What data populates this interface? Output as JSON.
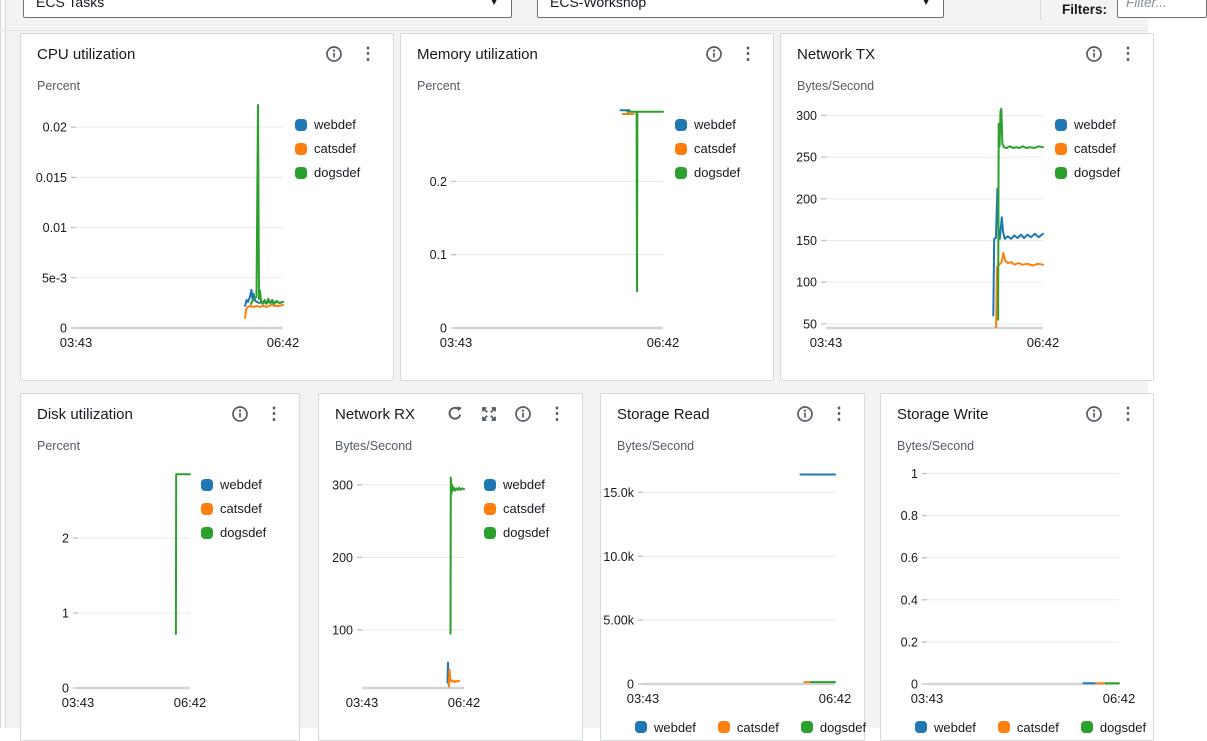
{
  "topbar": {
    "metric_selector": "ECS Tasks",
    "dashboard_selector": "ECS-Workshop",
    "filters_label": "Filters:",
    "filter_placeholder": "Filter..."
  },
  "icons": {
    "caret": "▼",
    "kebab": "⋮"
  },
  "palette": {
    "webdef": "#1f77b4",
    "catsdef": "#ff7f0e",
    "dogsdef": "#2ca02c"
  },
  "chart_data": [
    {
      "key": "cpu",
      "type": "line",
      "title": "CPU utilization",
      "ylabel": "Percent",
      "ylim": [
        0,
        0.0224
      ],
      "ml": 45,
      "mr": 12,
      "legend_position": "right",
      "grid": true,
      "yticks": [
        {
          "v": 0,
          "label": "0"
        },
        {
          "v": 0.005,
          "label": "5e-3"
        },
        {
          "v": 0.01,
          "label": "0.01"
        },
        {
          "v": 0.015,
          "label": "0.015"
        },
        {
          "v": 0.02,
          "label": "0.02"
        }
      ],
      "xticks": [
        {
          "f": 0,
          "label": "03:43"
        },
        {
          "f": 1,
          "label": "06:42"
        }
      ],
      "series": [
        {
          "name": "webdef",
          "points": [
            [
              0.817,
              0.0022
            ],
            [
              0.824,
              0.0028
            ],
            [
              0.831,
              0.0026
            ],
            [
              0.84,
              0.0031
            ],
            [
              0.848,
              0.0038
            ],
            [
              0.853,
              0.0028
            ],
            [
              0.858,
              0.0034
            ],
            [
              0.865,
              0.0027
            ],
            [
              0.874,
              0.0026
            ],
            [
              0.886,
              0.0025
            ],
            [
              0.9,
              0.0026
            ],
            [
              0.917,
              0.0025
            ],
            [
              0.934,
              0.0026
            ],
            [
              0.952,
              0.0025
            ],
            [
              0.97,
              0.0026
            ],
            [
              0.986,
              0.0025
            ],
            [
              1,
              0.0026
            ]
          ]
        },
        {
          "name": "catsdef",
          "points": [
            [
              0.817,
              0.001
            ],
            [
              0.822,
              0.0019
            ],
            [
              0.831,
              0.0021
            ],
            [
              0.843,
              0.0022
            ],
            [
              0.857,
              0.0021
            ],
            [
              0.872,
              0.0022
            ],
            [
              0.888,
              0.0021
            ],
            [
              0.904,
              0.0022
            ],
            [
              0.922,
              0.0021
            ],
            [
              0.942,
              0.0023
            ],
            [
              0.962,
              0.0022
            ],
            [
              0.98,
              0.0022
            ],
            [
              1,
              0.0023
            ]
          ]
        },
        {
          "name": "dogsdef",
          "points": [
            [
              0.845,
              0.0024
            ],
            [
              0.858,
              0.0029
            ],
            [
              0.872,
              0.0031
            ],
            [
              0.879,
              0.0222
            ],
            [
              0.884,
              0.0029
            ],
            [
              0.889,
              0.0037
            ],
            [
              0.894,
              0.0026
            ],
            [
              0.902,
              0.0024
            ],
            [
              0.911,
              0.0028
            ],
            [
              0.92,
              0.0024
            ],
            [
              0.929,
              0.0029
            ],
            [
              0.938,
              0.0025
            ],
            [
              0.948,
              0.0028
            ],
            [
              0.958,
              0.0024
            ],
            [
              0.968,
              0.0027
            ],
            [
              0.98,
              0.0025
            ],
            [
              1,
              0.0026
            ]
          ]
        }
      ]
    },
    {
      "key": "memory",
      "type": "line",
      "title": "Memory utilization",
      "ylabel": "Percent",
      "ylim": [
        0,
        0.307
      ],
      "ml": 45,
      "mr": 12,
      "legend_position": "right",
      "grid": true,
      "yticks": [
        {
          "v": 0,
          "label": "0"
        },
        {
          "v": 0.1,
          "label": "0.1"
        },
        {
          "v": 0.2,
          "label": "0.2"
        }
      ],
      "xticks": [
        {
          "f": 0,
          "label": "03:43"
        },
        {
          "f": 1,
          "label": "06:42"
        }
      ],
      "series": [
        {
          "name": "webdef",
          "points": [
            [
              0.795,
              0.297
            ],
            [
              0.838,
              0.297
            ]
          ]
        },
        {
          "name": "catsdef",
          "points": [
            [
              0.806,
              0.292
            ],
            [
              0.858,
              0.292
            ]
          ]
        },
        {
          "name": "dogsdef",
          "points": [
            [
              0.828,
              0.295
            ],
            [
              0.8725,
              0.295
            ],
            [
              0.8745,
              0.05
            ],
            [
              0.8765,
              0.295
            ],
            [
              1,
              0.295
            ]
          ]
        }
      ]
    },
    {
      "key": "network-tx",
      "type": "line",
      "title": "Network TX",
      "ylabel": "Bytes/Second",
      "ylim": [
        45,
        315
      ],
      "ml": 35,
      "mr": 12,
      "legend_position": "right",
      "grid": true,
      "yticks": [
        {
          "v": 50,
          "label": "50"
        },
        {
          "v": 100,
          "label": "100"
        },
        {
          "v": 150,
          "label": "150"
        },
        {
          "v": 200,
          "label": "200"
        },
        {
          "v": 250,
          "label": "250"
        },
        {
          "v": 300,
          "label": "300"
        }
      ],
      "xticks": [
        {
          "f": 0,
          "label": "03:43"
        },
        {
          "f": 1,
          "label": "06:42"
        }
      ],
      "series": [
        {
          "name": "webdef",
          "points": [
            [
              0.771,
              60
            ],
            [
              0.775,
              152
            ],
            [
              0.783,
              153
            ],
            [
              0.79,
              212
            ],
            [
              0.796,
              158
            ],
            [
              0.801,
              152
            ],
            [
              0.81,
              178
            ],
            [
              0.816,
              160
            ],
            [
              0.824,
              152
            ],
            [
              0.838,
              155
            ],
            [
              0.853,
              152
            ],
            [
              0.868,
              156
            ],
            [
              0.883,
              153
            ],
            [
              0.898,
              157
            ],
            [
              0.913,
              153
            ],
            [
              0.929,
              157
            ],
            [
              0.945,
              154
            ],
            [
              0.962,
              158
            ],
            [
              0.98,
              154
            ],
            [
              1,
              158
            ]
          ]
        },
        {
          "name": "catsdef",
          "points": [
            [
              0.784,
              46
            ],
            [
              0.788,
              118
            ],
            [
              0.798,
              121
            ],
            [
              0.809,
              124
            ],
            [
              0.817,
              135
            ],
            [
              0.826,
              126
            ],
            [
              0.838,
              123
            ],
            [
              0.853,
              124
            ],
            [
              0.869,
              121
            ],
            [
              0.886,
              123
            ],
            [
              0.905,
              121
            ],
            [
              0.928,
              122
            ],
            [
              0.952,
              120
            ],
            [
              0.976,
              122
            ],
            [
              1,
              121
            ]
          ]
        },
        {
          "name": "dogsdef",
          "points": [
            [
              0.793,
              55
            ],
            [
              0.796,
              290
            ],
            [
              0.8,
              263
            ],
            [
              0.804,
              305
            ],
            [
              0.808,
              308
            ],
            [
              0.813,
              266
            ],
            [
              0.82,
              262
            ],
            [
              0.833,
              261
            ],
            [
              0.847,
              263
            ],
            [
              0.862,
              261
            ],
            [
              0.877,
              262
            ],
            [
              0.892,
              261
            ],
            [
              0.907,
              263
            ],
            [
              0.923,
              261
            ],
            [
              0.941,
              262
            ],
            [
              0.96,
              261
            ],
            [
              0.98,
              263
            ],
            [
              1,
              262
            ]
          ]
        }
      ]
    },
    {
      "key": "disk",
      "type": "line",
      "title": "Disk utilization",
      "ylabel": "Percent",
      "ylim": [
        0,
        3.0
      ],
      "ml": 47,
      "mr": 11,
      "legend_position": "right",
      "grid": true,
      "yticks": [
        {
          "v": 0,
          "label": "0"
        },
        {
          "v": 1,
          "label": "1"
        },
        {
          "v": 2,
          "label": "2"
        }
      ],
      "xticks": [
        {
          "f": 0,
          "label": "03:43"
        },
        {
          "f": 1,
          "label": "06:42"
        }
      ],
      "series": [
        {
          "name": "webdef",
          "points": []
        },
        {
          "name": "catsdef",
          "points": []
        },
        {
          "name": "dogsdef",
          "points": [
            [
              0.874,
              0.72
            ],
            [
              0.877,
              2.85
            ],
            [
              1,
              2.85
            ]
          ]
        }
      ]
    },
    {
      "key": "network-rx",
      "type": "line",
      "title": "Network RX",
      "ylabel": "Bytes/Second",
      "ylim": [
        20,
        330
      ],
      "ml": 33,
      "mr": 20,
      "legend_position": "right",
      "grid": true,
      "extra_actions": true,
      "yticks": [
        {
          "v": 100,
          "label": "100"
        },
        {
          "v": 200,
          "label": "200"
        },
        {
          "v": 300,
          "label": "300"
        }
      ],
      "xticks": [
        {
          "f": 0,
          "label": "03:43"
        },
        {
          "f": 1,
          "label": "06:42"
        }
      ],
      "series": [
        {
          "name": "webdef",
          "points": [
            [
              0.838,
              28
            ],
            [
              0.843,
              55
            ],
            [
              0.849,
              25
            ],
            [
              0.855,
              38
            ],
            [
              0.86,
              30
            ]
          ]
        },
        {
          "name": "catsdef",
          "points": [
            [
              0.852,
              22
            ],
            [
              0.858,
              45
            ],
            [
              0.866,
              33
            ],
            [
              0.877,
              29
            ],
            [
              0.89,
              30
            ],
            [
              0.905,
              28
            ],
            [
              0.922,
              30
            ],
            [
              0.938,
              29
            ],
            [
              0.952,
              30
            ]
          ]
        },
        {
          "name": "dogsdef",
          "points": [
            [
              0.868,
              95
            ],
            [
              0.871,
              310
            ],
            [
              0.877,
              288
            ],
            [
              0.883,
              300
            ],
            [
              0.89,
              292
            ],
            [
              0.9,
              296
            ],
            [
              0.912,
              292
            ],
            [
              0.924,
              295
            ],
            [
              0.938,
              293
            ],
            [
              0.952,
              296
            ],
            [
              0.966,
              293
            ],
            [
              0.982,
              295
            ],
            [
              1,
              294
            ]
          ]
        }
      ]
    },
    {
      "key": "storage-read",
      "type": "line",
      "title": "Storage Read",
      "ylabel": "Bytes/Second",
      "ylim": [
        0,
        17300
      ],
      "ml": 32,
      "mr": 19,
      "legend_position": "bottom",
      "grid": true,
      "yticks": [
        {
          "v": 0,
          "label": "0"
        },
        {
          "v": 5000,
          "label": "5.00k"
        },
        {
          "v": 10000,
          "label": "10.0k"
        },
        {
          "v": 15000,
          "label": "15.0k"
        }
      ],
      "xticks": [
        {
          "f": 0,
          "label": "03:43"
        },
        {
          "f": 1,
          "label": "06:42"
        }
      ],
      "series": [
        {
          "name": "webdef",
          "points": [
            [
              0.82,
              16400
            ],
            [
              1,
              16400
            ]
          ]
        },
        {
          "name": "catsdef",
          "points": [
            [
              0.84,
              150
            ],
            [
              0.875,
              150
            ]
          ]
        },
        {
          "name": "dogsdef",
          "points": [
            [
              0.875,
              150
            ],
            [
              1,
              150
            ]
          ]
        }
      ]
    },
    {
      "key": "storage-write",
      "type": "line",
      "title": "Storage Write",
      "ylabel": "Bytes/Second",
      "ylim": [
        0,
        1.05
      ],
      "ml": 36,
      "mr": 24,
      "legend_position": "bottom",
      "grid": true,
      "yticks": [
        {
          "v": 0,
          "label": "0"
        },
        {
          "v": 0.2,
          "label": "0.2"
        },
        {
          "v": 0.4,
          "label": "0.4"
        },
        {
          "v": 0.6,
          "label": "0.6"
        },
        {
          "v": 0.8,
          "label": "0.8"
        },
        {
          "v": 1,
          "label": "1"
        }
      ],
      "xticks": [
        {
          "f": 0,
          "label": "03:43"
        },
        {
          "f": 1,
          "label": "06:42"
        }
      ],
      "series": [
        {
          "name": "webdef",
          "points": [
            [
              0.815,
              0.004
            ],
            [
              0.88,
              0.004
            ]
          ]
        },
        {
          "name": "catsdef",
          "points": [
            [
              0.88,
              0.004
            ],
            [
              0.932,
              0.004
            ]
          ]
        },
        {
          "name": "dogsdef",
          "points": [
            [
              0.932,
              0.004
            ],
            [
              1,
              0.004
            ]
          ]
        }
      ]
    }
  ]
}
